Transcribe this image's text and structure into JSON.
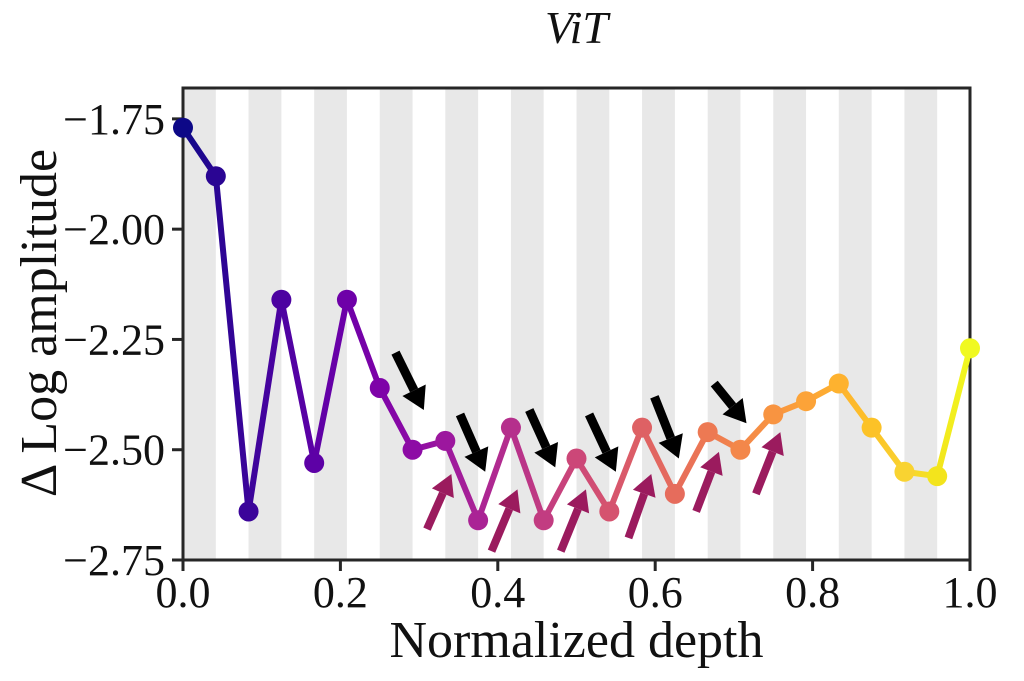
{
  "chart_data": {
    "type": "line",
    "title": "ViT",
    "xlabel": "Normalized depth",
    "ylabel": "Δ Log amplitude",
    "x": [
      0.0,
      0.0417,
      0.0833,
      0.125,
      0.1667,
      0.2083,
      0.25,
      0.2917,
      0.3333,
      0.375,
      0.4167,
      0.4583,
      0.5,
      0.5417,
      0.5833,
      0.625,
      0.6667,
      0.7083,
      0.75,
      0.7917,
      0.8333,
      0.875,
      0.9167,
      0.9583,
      1.0
    ],
    "y": [
      -1.77,
      -1.88,
      -2.64,
      -2.16,
      -2.53,
      -2.16,
      -2.36,
      -2.5,
      -2.48,
      -2.66,
      -2.45,
      -2.66,
      -2.52,
      -2.64,
      -2.45,
      -2.6,
      -2.46,
      -2.5,
      -2.42,
      -2.39,
      -2.35,
      -2.45,
      -2.55,
      -2.56,
      -2.27
    ],
    "point_colors": [
      "#0d0887",
      "#2a0593",
      "#3b049a",
      "#4c02a1",
      "#5d01a6",
      "#6e00a8",
      "#7e03a8",
      "#8d0ba5",
      "#9c179e",
      "#aa2395",
      "#b52f8c",
      "#c23c81",
      "#cc4778",
      "#d5536f",
      "#de6164",
      "#e66c5c",
      "#ed7953",
      "#f3874a",
      "#f89441",
      "#fca338",
      "#feb22f",
      "#fcc227",
      "#f9d331",
      "#f3e41c",
      "#f0f921"
    ],
    "xlim": [
      0.0,
      1.0
    ],
    "ylim": [
      -2.75,
      -1.68
    ],
    "xticks": {
      "values": [
        0.0,
        0.2,
        0.4,
        0.6,
        0.8,
        1.0
      ],
      "labels": [
        "0.0",
        "0.2",
        "0.4",
        "0.6",
        "0.8",
        "1.0"
      ]
    },
    "yticks": {
      "values": [
        -1.75,
        -2.0,
        -2.25,
        -2.5,
        -2.75
      ],
      "labels": [
        "−1.75",
        "−2.00",
        "−2.25",
        "−2.50",
        "−2.75"
      ]
    },
    "grid": false,
    "legend": "none",
    "stripes": {
      "color": "#e8e8e8",
      "description": "vertical bands spanning every other inter-layer interval, starting at x=0"
    },
    "frame_color": "#262626",
    "line_width": 6,
    "marker_radius": 10,
    "annotations": {
      "down_arrows": {
        "color": "#000000",
        "points": [
          {
            "from": [
              0.27,
              -2.28
            ],
            "to": [
              0.306,
              -2.41
            ]
          },
          {
            "from": [
              0.352,
              -2.42
            ],
            "to": [
              0.384,
              -2.55
            ]
          },
          {
            "from": [
              0.44,
              -2.41
            ],
            "to": [
              0.473,
              -2.54
            ]
          },
          {
            "from": [
              0.516,
              -2.42
            ],
            "to": [
              0.55,
              -2.55
            ]
          },
          {
            "from": [
              0.599,
              -2.38
            ],
            "to": [
              0.63,
              -2.52
            ]
          },
          {
            "from": [
              0.675,
              -2.35
            ],
            "to": [
              0.716,
              -2.44
            ]
          }
        ]
      },
      "up_arrows": {
        "color": "#9b1b5e",
        "points": [
          {
            "from": [
              0.31,
              -2.68
            ],
            "to": [
              0.341,
              -2.555
            ]
          },
          {
            "from": [
              0.392,
              -2.73
            ],
            "to": [
              0.425,
              -2.59
            ]
          },
          {
            "from": [
              0.48,
              -2.73
            ],
            "to": [
              0.512,
              -2.59
            ]
          },
          {
            "from": [
              0.566,
              -2.7
            ],
            "to": [
              0.595,
              -2.555
            ]
          },
          {
            "from": [
              0.652,
              -2.64
            ],
            "to": [
              0.681,
              -2.505
            ]
          },
          {
            "from": [
              0.728,
              -2.6
            ],
            "to": [
              0.759,
              -2.46
            ]
          }
        ]
      }
    }
  }
}
